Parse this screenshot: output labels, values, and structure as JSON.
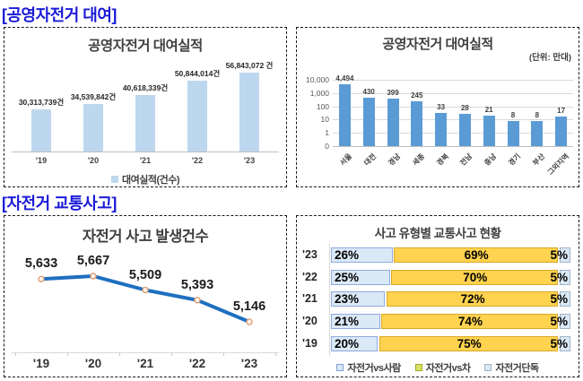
{
  "page": {
    "section1_header": "[공영자전거 대여]",
    "section2_header": "[자전거 교통사고]",
    "header_color": "#1b1bd8"
  },
  "chart_data": [
    {
      "id": "rental-by-year",
      "type": "bar",
      "title": "공영자전거 대여실적",
      "categories": [
        "'19",
        "'20",
        "'21",
        "'22",
        "'23"
      ],
      "values": [
        30313739,
        34539842,
        40618339,
        50844014,
        56843072
      ],
      "value_labels": [
        "30,313,739건",
        "34,539,842건",
        "40,618,339건",
        "50,844,014건",
        "56,843,072 건"
      ],
      "legend": [
        "대여실적(건수)"
      ],
      "legend_position": "bottom",
      "bar_color": "#bdd7ee",
      "ylim": [
        0,
        60000000
      ],
      "grid": false
    },
    {
      "id": "rental-by-region",
      "type": "bar",
      "title": "공영자전거 대여실적",
      "unit_label": "(단위: 만대)",
      "categories": [
        "서울",
        "대전",
        "경남",
        "세종",
        "경북",
        "전남",
        "충남",
        "경기",
        "부산",
        "그외지역"
      ],
      "values": [
        4494,
        430,
        399,
        245,
        33,
        28,
        21,
        8,
        8,
        17
      ],
      "value_labels": [
        "4,494",
        "430",
        "399",
        "245",
        "33",
        "28",
        "21",
        "8",
        "8",
        "17"
      ],
      "y_ticks": [
        "10,000",
        "1,000",
        "100",
        "10",
        "1",
        "0"
      ],
      "scale": "log",
      "bar_color": "#5b9bd5",
      "grid": true
    },
    {
      "id": "accidents-by-year",
      "type": "line",
      "title": "자전거 사고 발생건수",
      "categories": [
        "'19",
        "'20",
        "'21",
        "'22",
        "'23"
      ],
      "values": [
        5633,
        5667,
        5509,
        5393,
        5146
      ],
      "value_labels": [
        "5,633",
        "5,667",
        "5,509",
        "5,393",
        "5,146"
      ],
      "line_color": "#1e6fc0",
      "marker_fill": "#fdf3ea",
      "marker_stroke": "#dda078"
    },
    {
      "id": "accidents-by-type",
      "type": "bar",
      "orientation": "horizontal",
      "stacked": true,
      "title": "사고 유형별 교통사고 현황",
      "categories": [
        "'23",
        "'22",
        "'21",
        "'20",
        "'19"
      ],
      "series": [
        {
          "name": "자전거vs사람",
          "values": [
            26,
            25,
            23,
            21,
            20
          ],
          "color": "#dbe9f7",
          "border": "#8faadc",
          "swatch": "#dbe9f7",
          "swatch_border": "#7f9fd0"
        },
        {
          "name": "자전거vs차",
          "values": [
            69,
            70,
            72,
            74,
            75
          ],
          "color": "#ffd34f",
          "border": "#d9a826",
          "swatch": "#dde25f",
          "swatch_border": "#a0a832"
        },
        {
          "name": "자전거단독",
          "values": [
            5,
            5,
            5,
            5,
            5
          ],
          "color": "#dbe9f7",
          "border": "#a4b3c6",
          "swatch": "#dbe9f7",
          "swatch_border": "#9fb0c0"
        }
      ],
      "legend": [
        "자전거vs사람",
        "자전거vs차",
        "자전거단독"
      ],
      "legend_position": "bottom",
      "xlim": [
        0,
        100
      ]
    }
  ]
}
